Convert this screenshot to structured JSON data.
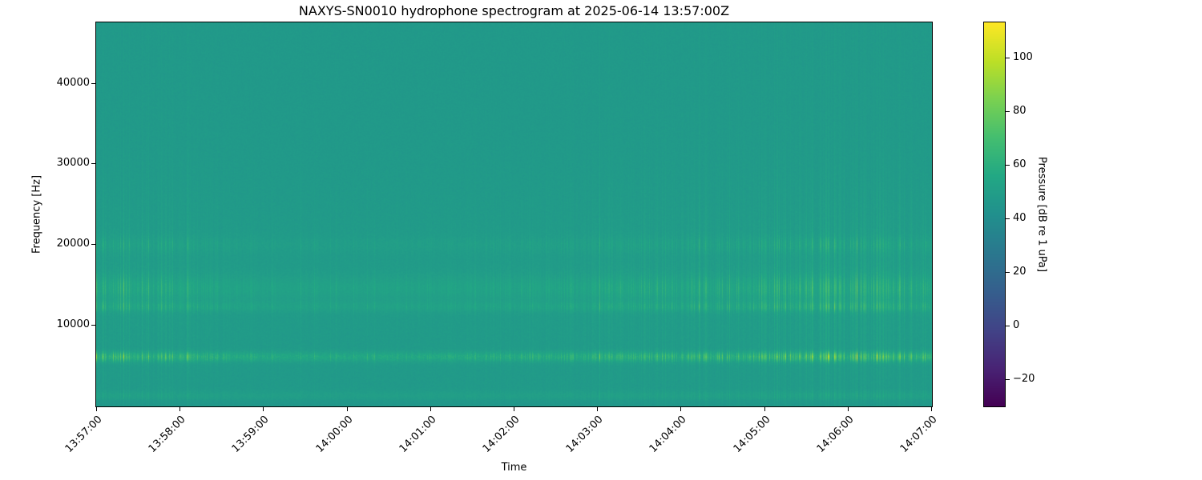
{
  "chart_data": {
    "type": "heatmap",
    "title": "NAXYS-SN0010 hydrophone spectrogram at 2025-06-14 13:57:00Z",
    "xlabel": "Time",
    "ylabel": "Frequency [Hz]",
    "x_tick_labels": [
      "13:57:00",
      "13:58:00",
      "13:59:00",
      "14:00:00",
      "14:01:00",
      "14:02:00",
      "14:03:00",
      "14:04:00",
      "14:05:00",
      "14:06:00",
      "14:07:00"
    ],
    "x_tick_rotation_deg": 45,
    "y_ticks_hz": [
      10000,
      20000,
      30000,
      40000
    ],
    "y_range_hz": [
      0,
      47500
    ],
    "colormap": "viridis",
    "grid": false,
    "legend": null,
    "colorbar": {
      "label": "Pressure [dB re 1 uPa]",
      "ticks": [
        -20,
        0,
        20,
        40,
        60,
        80,
        100
      ],
      "range_db": [
        -30,
        113
      ]
    },
    "background_level_db": 47,
    "features": [
      {
        "name": "tonal-band",
        "freq_hz": [
          5500,
          6700
        ],
        "typical_db": 62,
        "peak_db": 95,
        "description": "bright intermittent speckled band near 6 kHz"
      },
      {
        "name": "band-cluster",
        "freq_hz": [
          11800,
          12800
        ],
        "typical_db": 52,
        "peak_db": 68,
        "description": "speckled band near 12.3 kHz"
      },
      {
        "name": "band-cluster",
        "freq_hz": [
          13300,
          16000
        ],
        "typical_db": 53,
        "peak_db": 70,
        "description": "dense speckled band 13.5-16 kHz"
      },
      {
        "name": "faint-band",
        "freq_hz": [
          19000,
          21000
        ],
        "typical_db": 50,
        "peak_db": 60,
        "description": "faint band near 20 kHz"
      },
      {
        "name": "low-band",
        "freq_hz": [
          800,
          1800
        ],
        "typical_db": 50,
        "peak_db": 56,
        "description": "pale strip near bottom"
      },
      {
        "name": "broadband-striations",
        "freq_hz": [
          0,
          47500
        ],
        "typical_db": 48,
        "peak_db": 56,
        "description": "vertical transient striations spanning full bandwidth"
      }
    ]
  }
}
